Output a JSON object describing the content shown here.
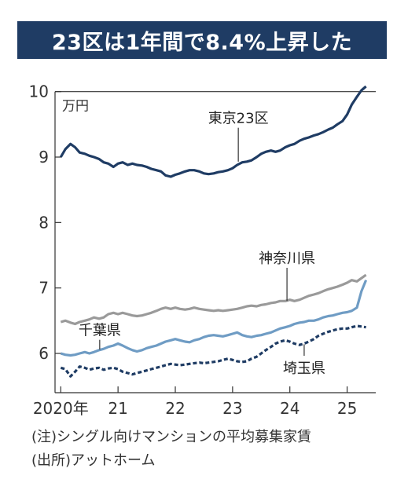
{
  "title": "23区は1年間で8.4%上昇した",
  "notes": [
    "(注)シングル向けマンションの平均募集家賃",
    "(出所)アットホーム"
  ],
  "chart_data": {
    "type": "line",
    "unit_label": "万円",
    "ylim": [
      5.4,
      10.2
    ],
    "xlim": [
      2019.9,
      2025.5
    ],
    "y_ticks": [
      6,
      7,
      8,
      9,
      10
    ],
    "x_ticks": [
      {
        "value": 2020,
        "label": "2020年"
      },
      {
        "value": 2021,
        "label": "21"
      },
      {
        "value": 2022,
        "label": "22"
      },
      {
        "value": 2023,
        "label": "23"
      },
      {
        "value": 2024,
        "label": "24"
      },
      {
        "value": 2025,
        "label": "25"
      }
    ],
    "series": [
      {
        "name": "東京23区",
        "color": "#1f3c64",
        "dash": "none",
        "points": [
          [
            2020.0,
            9.0
          ],
          [
            2020.08,
            9.12
          ],
          [
            2020.17,
            9.2
          ],
          [
            2020.25,
            9.15
          ],
          [
            2020.33,
            9.07
          ],
          [
            2020.42,
            9.05
          ],
          [
            2020.5,
            9.02
          ],
          [
            2020.58,
            9.0
          ],
          [
            2020.67,
            8.97
          ],
          [
            2020.75,
            8.92
          ],
          [
            2020.83,
            8.9
          ],
          [
            2020.92,
            8.85
          ],
          [
            2021.0,
            8.9
          ],
          [
            2021.08,
            8.92
          ],
          [
            2021.17,
            8.88
          ],
          [
            2021.25,
            8.9
          ],
          [
            2021.33,
            8.88
          ],
          [
            2021.42,
            8.87
          ],
          [
            2021.5,
            8.85
          ],
          [
            2021.58,
            8.82
          ],
          [
            2021.67,
            8.8
          ],
          [
            2021.75,
            8.78
          ],
          [
            2021.83,
            8.72
          ],
          [
            2021.92,
            8.7
          ],
          [
            2022.0,
            8.73
          ],
          [
            2022.08,
            8.75
          ],
          [
            2022.17,
            8.78
          ],
          [
            2022.25,
            8.8
          ],
          [
            2022.33,
            8.8
          ],
          [
            2022.42,
            8.78
          ],
          [
            2022.5,
            8.75
          ],
          [
            2022.58,
            8.74
          ],
          [
            2022.67,
            8.75
          ],
          [
            2022.75,
            8.77
          ],
          [
            2022.83,
            8.78
          ],
          [
            2022.92,
            8.8
          ],
          [
            2023.0,
            8.83
          ],
          [
            2023.08,
            8.88
          ],
          [
            2023.17,
            8.92
          ],
          [
            2023.25,
            8.93
          ],
          [
            2023.33,
            8.95
          ],
          [
            2023.42,
            9.0
          ],
          [
            2023.5,
            9.05
          ],
          [
            2023.58,
            9.08
          ],
          [
            2023.67,
            9.1
          ],
          [
            2023.75,
            9.08
          ],
          [
            2023.83,
            9.1
          ],
          [
            2023.92,
            9.15
          ],
          [
            2024.0,
            9.18
          ],
          [
            2024.08,
            9.2
          ],
          [
            2024.17,
            9.25
          ],
          [
            2024.25,
            9.28
          ],
          [
            2024.33,
            9.3
          ],
          [
            2024.42,
            9.33
          ],
          [
            2024.5,
            9.35
          ],
          [
            2024.58,
            9.38
          ],
          [
            2024.67,
            9.42
          ],
          [
            2024.75,
            9.45
          ],
          [
            2024.83,
            9.5
          ],
          [
            2024.92,
            9.55
          ],
          [
            2025.0,
            9.65
          ],
          [
            2025.08,
            9.8
          ],
          [
            2025.17,
            9.92
          ],
          [
            2025.25,
            10.02
          ],
          [
            2025.33,
            10.08
          ]
        ]
      },
      {
        "name": "神奈川県",
        "color": "#9a9a9a",
        "dash": "none",
        "points": [
          [
            2020.0,
            6.48
          ],
          [
            2020.08,
            6.5
          ],
          [
            2020.17,
            6.47
          ],
          [
            2020.25,
            6.45
          ],
          [
            2020.33,
            6.48
          ],
          [
            2020.42,
            6.5
          ],
          [
            2020.5,
            6.52
          ],
          [
            2020.58,
            6.55
          ],
          [
            2020.67,
            6.53
          ],
          [
            2020.75,
            6.55
          ],
          [
            2020.83,
            6.6
          ],
          [
            2020.92,
            6.62
          ],
          [
            2021.0,
            6.6
          ],
          [
            2021.08,
            6.62
          ],
          [
            2021.17,
            6.6
          ],
          [
            2021.25,
            6.58
          ],
          [
            2021.33,
            6.57
          ],
          [
            2021.42,
            6.58
          ],
          [
            2021.5,
            6.6
          ],
          [
            2021.58,
            6.62
          ],
          [
            2021.67,
            6.65
          ],
          [
            2021.75,
            6.68
          ],
          [
            2021.83,
            6.7
          ],
          [
            2021.92,
            6.68
          ],
          [
            2022.0,
            6.7
          ],
          [
            2022.08,
            6.68
          ],
          [
            2022.17,
            6.67
          ],
          [
            2022.25,
            6.68
          ],
          [
            2022.33,
            6.7
          ],
          [
            2022.42,
            6.68
          ],
          [
            2022.5,
            6.67
          ],
          [
            2022.58,
            6.66
          ],
          [
            2022.67,
            6.65
          ],
          [
            2022.75,
            6.66
          ],
          [
            2022.83,
            6.65
          ],
          [
            2022.92,
            6.66
          ],
          [
            2023.0,
            6.67
          ],
          [
            2023.08,
            6.68
          ],
          [
            2023.17,
            6.7
          ],
          [
            2023.25,
            6.72
          ],
          [
            2023.33,
            6.73
          ],
          [
            2023.42,
            6.72
          ],
          [
            2023.5,
            6.74
          ],
          [
            2023.58,
            6.75
          ],
          [
            2023.67,
            6.77
          ],
          [
            2023.75,
            6.78
          ],
          [
            2023.83,
            6.8
          ],
          [
            2023.92,
            6.8
          ],
          [
            2024.0,
            6.82
          ],
          [
            2024.08,
            6.8
          ],
          [
            2024.17,
            6.82
          ],
          [
            2024.25,
            6.85
          ],
          [
            2024.33,
            6.88
          ],
          [
            2024.42,
            6.9
          ],
          [
            2024.5,
            6.92
          ],
          [
            2024.58,
            6.95
          ],
          [
            2024.67,
            6.98
          ],
          [
            2024.75,
            7.0
          ],
          [
            2024.83,
            7.02
          ],
          [
            2024.92,
            7.05
          ],
          [
            2025.0,
            7.08
          ],
          [
            2025.08,
            7.12
          ],
          [
            2025.17,
            7.1
          ],
          [
            2025.25,
            7.15
          ],
          [
            2025.33,
            7.2
          ]
        ]
      },
      {
        "name": "千葉県",
        "color": "#6f9cc4",
        "dash": "none",
        "points": [
          [
            2020.0,
            6.0
          ],
          [
            2020.08,
            5.98
          ],
          [
            2020.17,
            5.97
          ],
          [
            2020.25,
            5.98
          ],
          [
            2020.33,
            6.0
          ],
          [
            2020.42,
            6.02
          ],
          [
            2020.5,
            6.0
          ],
          [
            2020.58,
            6.02
          ],
          [
            2020.67,
            6.05
          ],
          [
            2020.75,
            6.07
          ],
          [
            2020.83,
            6.1
          ],
          [
            2020.92,
            6.12
          ],
          [
            2021.0,
            6.15
          ],
          [
            2021.08,
            6.12
          ],
          [
            2021.17,
            6.08
          ],
          [
            2021.25,
            6.05
          ],
          [
            2021.33,
            6.03
          ],
          [
            2021.42,
            6.05
          ],
          [
            2021.5,
            6.08
          ],
          [
            2021.58,
            6.1
          ],
          [
            2021.67,
            6.12
          ],
          [
            2021.75,
            6.15
          ],
          [
            2021.83,
            6.18
          ],
          [
            2021.92,
            6.2
          ],
          [
            2022.0,
            6.22
          ],
          [
            2022.08,
            6.2
          ],
          [
            2022.17,
            6.18
          ],
          [
            2022.25,
            6.17
          ],
          [
            2022.33,
            6.2
          ],
          [
            2022.42,
            6.22
          ],
          [
            2022.5,
            6.25
          ],
          [
            2022.58,
            6.27
          ],
          [
            2022.67,
            6.28
          ],
          [
            2022.75,
            6.27
          ],
          [
            2022.83,
            6.26
          ],
          [
            2022.92,
            6.28
          ],
          [
            2023.0,
            6.3
          ],
          [
            2023.08,
            6.32
          ],
          [
            2023.17,
            6.28
          ],
          [
            2023.25,
            6.26
          ],
          [
            2023.33,
            6.25
          ],
          [
            2023.42,
            6.27
          ],
          [
            2023.5,
            6.28
          ],
          [
            2023.58,
            6.3
          ],
          [
            2023.67,
            6.32
          ],
          [
            2023.75,
            6.35
          ],
          [
            2023.83,
            6.38
          ],
          [
            2023.92,
            6.4
          ],
          [
            2024.0,
            6.42
          ],
          [
            2024.08,
            6.45
          ],
          [
            2024.17,
            6.47
          ],
          [
            2024.25,
            6.48
          ],
          [
            2024.33,
            6.5
          ],
          [
            2024.42,
            6.5
          ],
          [
            2024.5,
            6.52
          ],
          [
            2024.58,
            6.55
          ],
          [
            2024.67,
            6.57
          ],
          [
            2024.75,
            6.58
          ],
          [
            2024.83,
            6.6
          ],
          [
            2024.92,
            6.62
          ],
          [
            2025.0,
            6.63
          ],
          [
            2025.08,
            6.65
          ],
          [
            2025.17,
            6.7
          ],
          [
            2025.25,
            6.95
          ],
          [
            2025.33,
            7.12
          ]
        ]
      },
      {
        "name": "埼玉県",
        "color": "#1f3c64",
        "dash": "5,3",
        "points": [
          [
            2020.0,
            5.78
          ],
          [
            2020.08,
            5.76
          ],
          [
            2020.17,
            5.65
          ],
          [
            2020.25,
            5.72
          ],
          [
            2020.33,
            5.8
          ],
          [
            2020.42,
            5.78
          ],
          [
            2020.5,
            5.75
          ],
          [
            2020.58,
            5.77
          ],
          [
            2020.67,
            5.78
          ],
          [
            2020.75,
            5.75
          ],
          [
            2020.83,
            5.77
          ],
          [
            2020.92,
            5.78
          ],
          [
            2021.0,
            5.76
          ],
          [
            2021.08,
            5.72
          ],
          [
            2021.17,
            5.7
          ],
          [
            2021.25,
            5.68
          ],
          [
            2021.33,
            5.7
          ],
          [
            2021.42,
            5.72
          ],
          [
            2021.5,
            5.74
          ],
          [
            2021.58,
            5.76
          ],
          [
            2021.67,
            5.78
          ],
          [
            2021.75,
            5.8
          ],
          [
            2021.83,
            5.82
          ],
          [
            2021.92,
            5.84
          ],
          [
            2022.0,
            5.83
          ],
          [
            2022.08,
            5.82
          ],
          [
            2022.17,
            5.83
          ],
          [
            2022.25,
            5.84
          ],
          [
            2022.33,
            5.85
          ],
          [
            2022.42,
            5.86
          ],
          [
            2022.5,
            5.85
          ],
          [
            2022.58,
            5.86
          ],
          [
            2022.67,
            5.87
          ],
          [
            2022.75,
            5.88
          ],
          [
            2022.83,
            5.9
          ],
          [
            2022.92,
            5.92
          ],
          [
            2023.0,
            5.9
          ],
          [
            2023.08,
            5.88
          ],
          [
            2023.17,
            5.87
          ],
          [
            2023.25,
            5.88
          ],
          [
            2023.33,
            5.92
          ],
          [
            2023.42,
            5.95
          ],
          [
            2023.5,
            6.0
          ],
          [
            2023.58,
            6.05
          ],
          [
            2023.67,
            6.1
          ],
          [
            2023.75,
            6.15
          ],
          [
            2023.83,
            6.18
          ],
          [
            2023.92,
            6.2
          ],
          [
            2024.0,
            6.18
          ],
          [
            2024.08,
            6.15
          ],
          [
            2024.17,
            6.13
          ],
          [
            2024.25,
            6.15
          ],
          [
            2024.33,
            6.18
          ],
          [
            2024.42,
            6.22
          ],
          [
            2024.5,
            6.27
          ],
          [
            2024.58,
            6.3
          ],
          [
            2024.67,
            6.33
          ],
          [
            2024.75,
            6.35
          ],
          [
            2024.83,
            6.37
          ],
          [
            2024.92,
            6.38
          ],
          [
            2025.0,
            6.38
          ],
          [
            2025.08,
            6.4
          ],
          [
            2025.17,
            6.42
          ],
          [
            2025.25,
            6.41
          ],
          [
            2025.33,
            6.4
          ]
        ]
      }
    ]
  }
}
